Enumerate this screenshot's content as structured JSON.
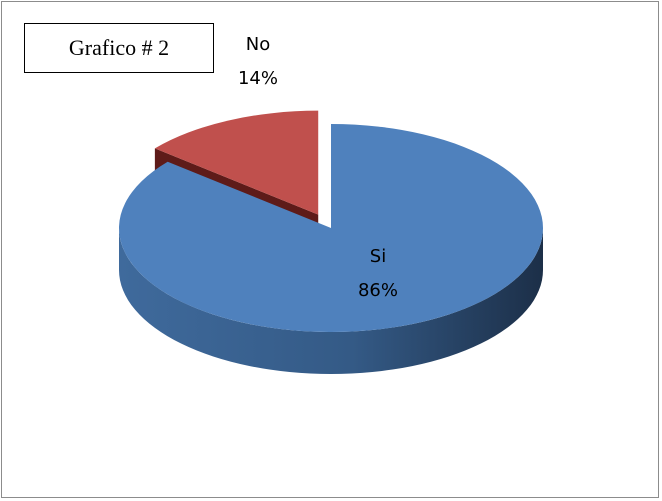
{
  "figure_label": "Grafico # 2",
  "chart_data": {
    "type": "pie",
    "title": "",
    "categories": [
      "Si",
      "No"
    ],
    "values": [
      86,
      14
    ],
    "colors": [
      "#4F81BD",
      "#C0504D"
    ],
    "exploded": [
      "No"
    ],
    "legend": "none",
    "data_labels": [
      "86%",
      "14%"
    ]
  }
}
